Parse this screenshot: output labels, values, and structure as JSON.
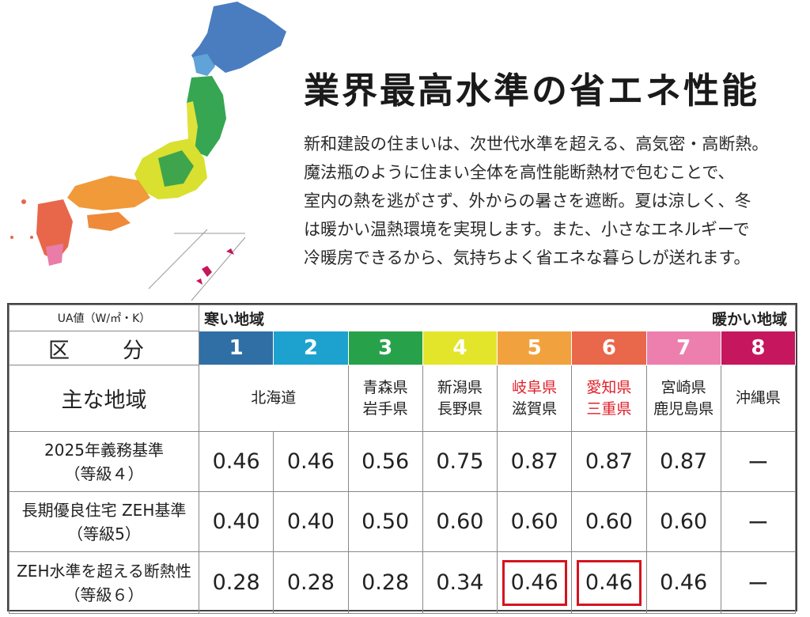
{
  "headline": "業界最高水準の省エネ性能",
  "paragraph": [
    "新和建設の住まいは、次世代水準を超える、高気密・高断熱。",
    "魔法瓶のように住まい全体を高性能断熱材で包むことで、",
    "室内の熱を逃がさず、外からの暑さを遮断。夏は涼しく、冬",
    "は暖かい温熱環境を実現します。また、小さなエネルギーで",
    "冷暖房できるから、気持ちよく省エネな暮らしが送れます。"
  ],
  "table": {
    "unit_label": "UA値（W/㎡・K）",
    "cold_label": "寒い地域",
    "warm_label": "暖かい地域",
    "kubun_label": "区　分",
    "region_header": "主な地域",
    "zones": [
      {
        "num": "1",
        "color": "#2f6fa5"
      },
      {
        "num": "2",
        "color": "#1da2cf"
      },
      {
        "num": "3",
        "color": "#27a24a"
      },
      {
        "num": "4",
        "color": "#e3e52b"
      },
      {
        "num": "5",
        "color": "#f1a23e"
      },
      {
        "num": "6",
        "color": "#e9674a"
      },
      {
        "num": "7",
        "color": "#ec7fae"
      },
      {
        "num": "8",
        "color": "#c5165e"
      }
    ],
    "regions": {
      "z12": "北海道",
      "z3": [
        "青森県",
        "岩手県"
      ],
      "z4": [
        "新潟県",
        "長野県"
      ],
      "z5": [
        "岐阜県",
        "滋賀県"
      ],
      "z6": [
        "愛知県",
        "三重県"
      ],
      "z7": [
        "宮崎県",
        "鹿児島県"
      ],
      "z8": "沖縄県"
    },
    "rows": [
      {
        "label1": "2025年義務基準",
        "label2": "（等級４）",
        "values": [
          "0.46",
          "0.46",
          "0.56",
          "0.75",
          "0.87",
          "0.87",
          "0.87",
          "ー"
        ]
      },
      {
        "label1": "長期優良住宅 ZEH基準",
        "label2": "（等級5）",
        "values": [
          "0.40",
          "0.40",
          "0.50",
          "0.60",
          "0.60",
          "0.60",
          "0.60",
          "ー"
        ]
      },
      {
        "label1": "ZEH水準を超える断熱性",
        "label2": "（等級６）",
        "values": [
          "0.28",
          "0.28",
          "0.28",
          "0.34",
          "0.46",
          "0.46",
          "0.46",
          "ー"
        ]
      }
    ],
    "highlight_color": "#e0202a"
  }
}
